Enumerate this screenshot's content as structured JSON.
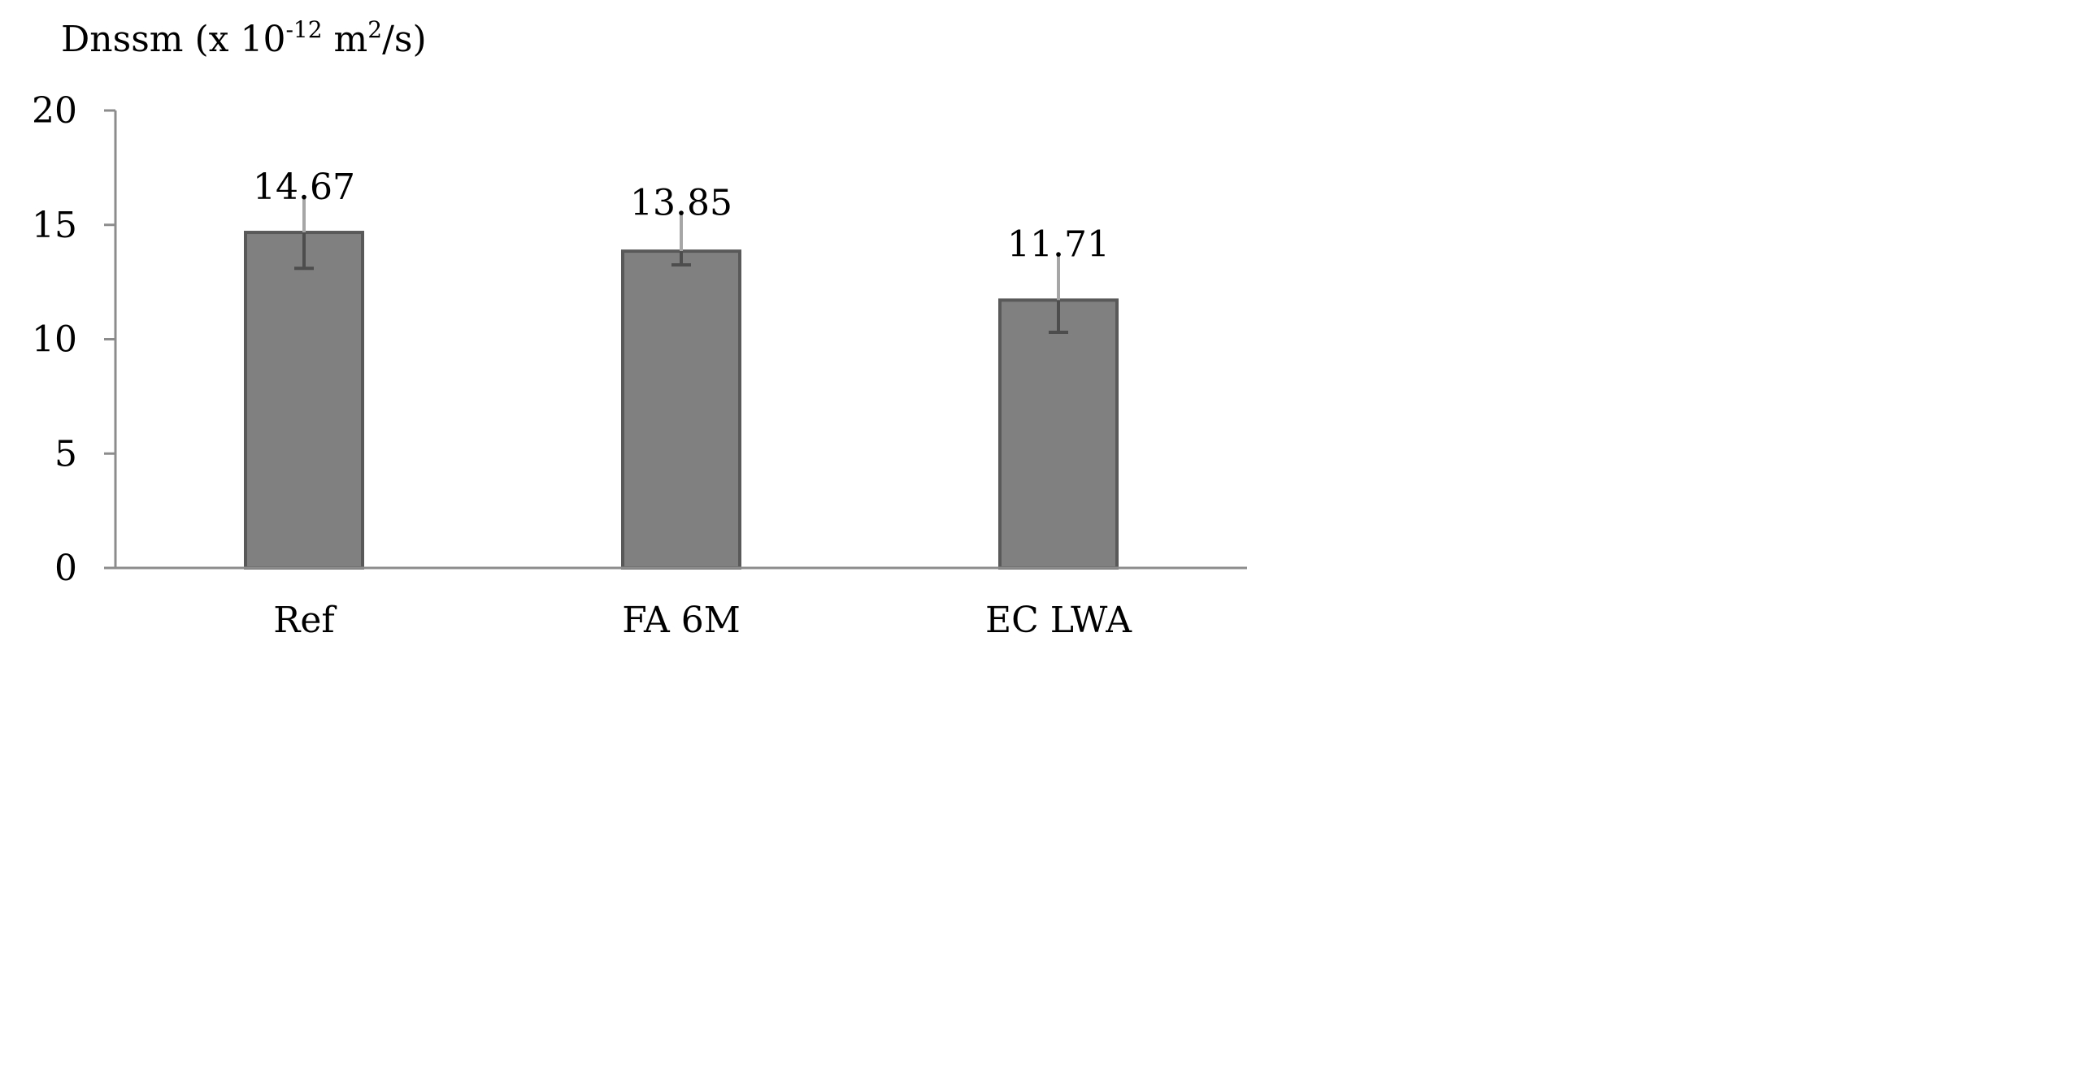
{
  "chart_data": {
    "type": "bar",
    "ylabel": {
      "prefix": "Dnssm (x 10",
      "exponent": "-12",
      "middle": " m",
      "unit_exponent": "2",
      "suffix": "/s)"
    },
    "categories": [
      "Ref",
      "FA 6M",
      "EC LWA"
    ],
    "values": [
      14.67,
      13.85,
      11.71
    ],
    "data_labels": [
      "14.67",
      "13.85",
      "11.71"
    ],
    "error_bars": [
      {
        "lower": 13.1,
        "upper": 16.2
      },
      {
        "lower": 13.25,
        "upper": 15.5
      },
      {
        "lower": 10.3,
        "upper": 13.7
      }
    ],
    "ylim": [
      0,
      20
    ],
    "yticks": [
      0,
      5,
      10,
      15,
      20
    ],
    "grid": false,
    "legend": "none",
    "colors": {
      "bar_fill": "#808080",
      "bar_stroke": "#595959",
      "error_bar": "#4d4d4d",
      "error_bar_upper": "#a6a6a6",
      "axis": "#8c8c8c"
    }
  }
}
